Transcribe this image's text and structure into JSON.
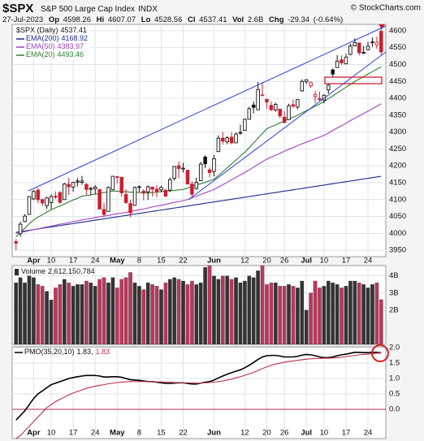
{
  "header": {
    "symbol": "$SPX",
    "name": "S&P 500 Large Cap Index",
    "exchange": "INDX",
    "copyright": "© StockCharts.com",
    "date": "27-Jul-2023",
    "labels": {
      "op": "Op",
      "hi": "Hi",
      "lo": "Lo",
      "cl": "Cl",
      "vol": "Vol",
      "chg": "Chg"
    },
    "vol": "2.6B",
    "chg": -29.34,
    "chg_pct": {
      "value": -0.64,
      "label": "(-0.64%)"
    }
  },
  "chart_data": [
    {
      "type": "candlestick",
      "name": "$SPX (Daily)",
      "up_color": "#111111",
      "down_color": "#cc1f2f",
      "grid": true,
      "categories": [
        null,
        null,
        null,
        null,
        "Apr",
        null,
        null,
        null,
        "10",
        null,
        null,
        null,
        null,
        "17",
        null,
        null,
        null,
        null,
        "24",
        null,
        null,
        null,
        null,
        "May",
        null,
        null,
        null,
        null,
        "8",
        null,
        null,
        null,
        null,
        "15",
        null,
        null,
        null,
        null,
        "22",
        null,
        null,
        null,
        null,
        null,
        null,
        "Jun",
        null,
        null,
        null,
        null,
        null,
        null,
        "12",
        null,
        null,
        null,
        null,
        "20",
        null,
        null,
        null,
        "26",
        null,
        null,
        null,
        null,
        "Jul",
        null,
        null,
        null,
        "10",
        null,
        null,
        null,
        null,
        "17",
        null,
        null,
        null,
        null,
        "24",
        null,
        null,
        null
      ],
      "open": [
        3975,
        3999,
        4035,
        4056,
        4102,
        4128,
        4100,
        4082,
        4091,
        4110,
        4121,
        4100,
        4145,
        4137,
        4152,
        4151,
        4145,
        4132,
        4132,
        4130,
        4071,
        4065,
        4129,
        4166,
        4166,
        4115,
        4088,
        4083,
        4136,
        4125,
        4123,
        4137,
        4131,
        4129,
        4128,
        4128,
        4163,
        4200,
        4191,
        4187,
        4146,
        4133,
        4156,
        4226,
        4188,
        4183,
        4242,
        4282,
        4271,
        4285,
        4268,
        4298,
        4305,
        4338,
        4380,
        4366,
        4408,
        4397,
        4379,
        4365,
        4368,
        4344,
        4337,
        4381,
        4374,
        4422,
        4449,
        4437,
        4405,
        4399,
        4395,
        4425,
        4484,
        4491,
        4514,
        4502,
        4530,
        4555,
        4564,
        4535,
        4544,
        4566,
        4558,
        4598.26
      ],
      "high": [
        3983,
        4035,
        4057,
        4110,
        4128,
        4134,
        4103,
        4108,
        4115,
        4124,
        4125,
        4149,
        4164,
        4152,
        4164,
        4170,
        4149,
        4138,
        4143,
        4130,
        4090,
        4139,
        4170,
        4170,
        4166,
        4131,
        4099,
        4139,
        4142,
        4131,
        4142,
        4138,
        4143,
        4141,
        4131,
        4165,
        4199,
        4213,
        4209,
        4188,
        4154,
        4165,
        4212,
        4231,
        4195,
        4232,
        4290,
        4300,
        4288,
        4299,
        4299,
        4322,
        4340,
        4375,
        4391,
        4448,
        4448,
        4397,
        4390,
        4387,
        4368,
        4362,
        4384,
        4396,
        4398,
        4456,
        4456,
        4450,
        4422,
        4420,
        4412,
        4443,
        4488,
        4528,
        4527,
        4532,
        4562,
        4578,
        4564,
        4555,
        4567,
        4580,
        4582,
        4607.07
      ],
      "low": [
        3950,
        3990,
        4033,
        4056,
        4099,
        4090,
        4081,
        4072,
        4072,
        4102,
        4087,
        4099,
        4114,
        4123,
        4139,
        4144,
        4114,
        4113,
        4117,
        4072,
        4049,
        4065,
        4128,
        4148,
        4109,
        4088,
        4048,
        4081,
        4123,
        4098,
        4099,
        4109,
        4107,
        4122,
        4110,
        4123,
        4156,
        4164,
        4180,
        4145,
        4104,
        4129,
        4156,
        4193,
        4166,
        4169,
        4241,
        4262,
        4264,
        4264,
        4268,
        4292,
        4304,
        4337,
        4355,
        4365,
        4407,
        4369,
        4363,
        4360,
        4341,
        4328,
        4336,
        4371,
        4367,
        4420,
        4442,
        4431,
        4385,
        4391,
        4385,
        4414,
        4464,
        4491,
        4499,
        4501,
        4527,
        4555,
        4527,
        4531,
        4542,
        4553,
        4547,
        4528.56
      ],
      "close": [
        3971,
        4027,
        4051,
        4109,
        4124,
        4100,
        4090,
        4105,
        4109,
        4108,
        4092,
        4146,
        4138,
        4151,
        4155,
        4155,
        4130,
        4133,
        4137,
        4072,
        4056,
        4136,
        4169,
        4168,
        4120,
        4091,
        4061,
        4136,
        4138,
        4119,
        4138,
        4131,
        4124,
        4136,
        4110,
        4159,
        4198,
        4192,
        4193,
        4146,
        4116,
        4151,
        4205,
        4206,
        4180,
        4221,
        4282,
        4273,
        4283,
        4268,
        4294,
        4299,
        4338,
        4369,
        4373,
        4426,
        4410,
        4389,
        4366,
        4382,
        4348,
        4328,
        4378,
        4377,
        4396,
        4450,
        4455,
        4446,
        4411,
        4399,
        4409,
        4439,
        4472,
        4510,
        4505,
        4522,
        4555,
        4565,
        4535,
        4536,
        4554,
        4567,
        4566,
        4537.41
      ],
      "series": [
        {
          "name": "EMA(200)",
          "color": "#1c2a8c",
          "values": [
            4003,
            4005,
            4007,
            4009,
            4011,
            4013,
            4015,
            4017,
            4019,
            4021,
            4023,
            4025,
            4027,
            4029,
            4031,
            4033,
            4035,
            4037,
            4039,
            4041,
            4043,
            4045,
            4047,
            4049,
            4051,
            4053,
            4055,
            4057,
            4059,
            4061,
            4063,
            4065,
            4067,
            4069,
            4071,
            4073,
            4075,
            4077,
            4079,
            4081,
            4083,
            4085,
            4087,
            4089,
            4091,
            4093,
            4095,
            4097,
            4099,
            4101,
            4103,
            4105,
            4107,
            4109,
            4111,
            4113,
            4115,
            4117,
            4119,
            4121,
            4123,
            4125,
            4127,
            4129,
            4131,
            4133,
            4135,
            4137,
            4139,
            4141,
            4143,
            4145,
            4147,
            4149,
            4151,
            4153,
            4155,
            4157,
            4159,
            4161,
            4163,
            4165,
            4167,
            4168.92
          ]
        },
        {
          "name": "EMA(50)",
          "color": "#a040c0",
          "values": [
            4000,
            4003,
            4005,
            4008,
            4011,
            4013,
            4016,
            4019,
            4021,
            4024,
            4027,
            4029,
            4032,
            4035,
            4037,
            4040,
            4042,
            4044,
            4047,
            4049,
            4051,
            4053,
            4056,
            4058,
            4060,
            4062,
            4065,
            4067,
            4070,
            4072,
            4075,
            4078,
            4081,
            4083,
            4086,
            4089,
            4092,
            4094,
            4097,
            4100,
            4105,
            4110,
            4115,
            4120,
            4125,
            4130,
            4137,
            4144,
            4151,
            4159,
            4166,
            4173,
            4180,
            4188,
            4196,
            4204,
            4212,
            4220,
            4226,
            4231,
            4237,
            4243,
            4249,
            4254,
            4260,
            4265,
            4270,
            4275,
            4280,
            4285,
            4290,
            4297,
            4305,
            4312,
            4319,
            4326,
            4334,
            4341,
            4348,
            4355,
            4362,
            4369,
            4376,
            4383.97
          ]
        },
        {
          "name": "EMA(20)",
          "color": "#2e7d32",
          "values": [
            3990,
            4003,
            4015,
            4028,
            4040,
            4048,
            4055,
            4063,
            4070,
            4076,
            4081,
            4087,
            4093,
            4099,
            4104,
            4110,
            4112,
            4114,
            4116,
            4118,
            4121,
            4123,
            4125,
            4125,
            4124,
            4123,
            4122,
            4122,
            4121,
            4120,
            4120,
            4121,
            4122,
            4124,
            4125,
            4126,
            4127,
            4129,
            4130,
            4134,
            4139,
            4143,
            4147,
            4151,
            4156,
            4160,
            4171,
            4183,
            4194,
            4206,
            4217,
            4229,
            4240,
            4254,
            4268,
            4282,
            4296,
            4310,
            4316,
            4321,
            4327,
            4333,
            4339,
            4344,
            4350,
            4357,
            4363,
            4370,
            4377,
            4383,
            4390,
            4399,
            4407,
            4416,
            4424,
            4433,
            4441,
            4450,
            4457,
            4464,
            4472,
            4479,
            4486,
            4493.46
          ]
        }
      ],
      "ylim": [
        3931,
        4619
      ],
      "yticks": [
        3950,
        4000,
        4050,
        4100,
        4150,
        4200,
        4250,
        4300,
        4350,
        4400,
        4450,
        4500,
        4550,
        4600
      ]
    },
    {
      "type": "bar",
      "name": "Volume",
      "up_color": "#333333",
      "down_color": "#b8385a",
      "grid": true,
      "legend_value": {
        "value": 2612150784,
        "label": "2,612,150,784"
      },
      "values": [
        3600000000.0,
        3900000000.0,
        3600000000.0,
        4000000000.0,
        3900000000.0,
        3500000000.0,
        3400000000.0,
        3100000000.0,
        2600000000.0,
        3300000000.0,
        3500000000.0,
        3800000000.0,
        3600000000.0,
        3400000000.0,
        3500000000.0,
        3500000000.0,
        3700000000.0,
        3600000000.0,
        3400000000.0,
        3800000000.0,
        3900000000.0,
        3600000000.0,
        3900000000.0,
        3300000000.0,
        3800000000.0,
        3900000000.0,
        4200000000.0,
        3600000000.0,
        3400000000.0,
        3200000000.0,
        3600000000.0,
        3500000000.0,
        3400000000.0,
        3200000000.0,
        3600000000.0,
        3800000000.0,
        3900000000.0,
        3800000000.0,
        3700000000.0,
        3500000000.0,
        3700000000.0,
        3500000000.0,
        3600000000.0,
        4500000000.0,
        4600000000.0,
        4000000000.0,
        3800000000.0,
        4000000000.0,
        4000000000.0,
        3800000000.0,
        3900000000.0,
        3600000000.0,
        3700000000.0,
        4000000000.0,
        3900000000.0,
        4300000000.0,
        4600000000.0,
        3500000000.0,
        3600000000.0,
        3600000000.0,
        3400000000.0,
        3400000000.0,
        3500000000.0,
        3400000000.0,
        3300000000.0,
        3700000000.0,
        2000000000.0,
        3000000000.0,
        3700000000.0,
        3300000000.0,
        3400000000.0,
        3700000000.0,
        3600000000.0,
        3500000000.0,
        3300000000.0,
        3400000000.0,
        3700000000.0,
        3700000000.0,
        3600000000.0,
        3500000000.0,
        3300000000.0,
        3500000000.0,
        3600000000.0,
        2612150784
      ],
      "ylim": [
        0,
        4600000000.0
      ],
      "yticks": [
        {
          "value": 2000000000.0,
          "label": "2B"
        },
        {
          "value": 3000000000.0,
          "label": "3B"
        },
        {
          "value": 4000000000.0,
          "label": "4B"
        }
      ]
    },
    {
      "type": "line",
      "grid": true,
      "zero_line": true,
      "zero_color": "#b03050",
      "categories": [
        null,
        null,
        null,
        null,
        "Apr",
        null,
        null,
        null,
        "10",
        null,
        null,
        null,
        null,
        "17",
        null,
        null,
        null,
        null,
        "24",
        null,
        null,
        null,
        null,
        "May",
        null,
        null,
        null,
        null,
        "8",
        null,
        null,
        null,
        null,
        "15",
        null,
        null,
        null,
        null,
        "22",
        null,
        null,
        null,
        null,
        null,
        null,
        "Jun",
        null,
        null,
        null,
        null,
        null,
        null,
        "12",
        null,
        null,
        null,
        null,
        "20",
        null,
        null,
        null,
        "26",
        null,
        null,
        null,
        null,
        "Jul",
        null,
        null,
        null,
        "10",
        null,
        null,
        null,
        null,
        "17",
        null,
        null,
        null,
        null,
        "24",
        null,
        null,
        null
      ],
      "series": [
        {
          "name": "PMO(35,20,10)",
          "color": "#000000",
          "values": [
            -0.35,
            -0.2,
            -0.05,
            0.15,
            0.35,
            0.5,
            0.6,
            0.7,
            0.8,
            0.85,
            0.9,
            0.95,
            1.0,
            1.03,
            1.06,
            1.08,
            1.1,
            1.1,
            1.1,
            1.08,
            1.05,
            1.05,
            1.06,
            1.06,
            1.04,
            1.0,
            0.96,
            0.95,
            0.94,
            0.92,
            0.9,
            0.9,
            0.88,
            0.86,
            0.84,
            0.84,
            0.85,
            0.86,
            0.86,
            0.84,
            0.82,
            0.82,
            0.85,
            0.88,
            0.9,
            0.95,
            1.02,
            1.08,
            1.14,
            1.19,
            1.24,
            1.28,
            1.35,
            1.43,
            1.52,
            1.62,
            1.7,
            1.74,
            1.75,
            1.75,
            1.73,
            1.7,
            1.7,
            1.7,
            1.72,
            1.76,
            1.78,
            1.77,
            1.74,
            1.7,
            1.68,
            1.68,
            1.7,
            1.74,
            1.77,
            1.79,
            1.82,
            1.85,
            1.85,
            1.84,
            1.84,
            1.85,
            1.85,
            1.83
          ]
        },
        {
          "color": "#c0304a",
          "values": [
            -0.95,
            -0.85,
            -0.7,
            -0.55,
            -0.4,
            -0.25,
            -0.1,
            0.05,
            0.15,
            0.25,
            0.33,
            0.4,
            0.47,
            0.53,
            0.58,
            0.63,
            0.68,
            0.72,
            0.75,
            0.78,
            0.8,
            0.83,
            0.85,
            0.87,
            0.88,
            0.89,
            0.9,
            0.9,
            0.9,
            0.9,
            0.9,
            0.9,
            0.89,
            0.89,
            0.88,
            0.88,
            0.87,
            0.87,
            0.86,
            0.86,
            0.86,
            0.85,
            0.85,
            0.86,
            0.87,
            0.88,
            0.9,
            0.92,
            0.95,
            0.98,
            1.02,
            1.06,
            1.1,
            1.15,
            1.2,
            1.26,
            1.32,
            1.38,
            1.43,
            1.47,
            1.5,
            1.53,
            1.55,
            1.57,
            1.59,
            1.61,
            1.63,
            1.64,
            1.65,
            1.65,
            1.66,
            1.66,
            1.67,
            1.68,
            1.69,
            1.71,
            1.73,
            1.75,
            1.77,
            1.78,
            1.79,
            1.81,
            1.82,
            1.83
          ]
        }
      ],
      "ylim": [
        -0.95,
        2.03
      ],
      "yticks": [
        {
          "value": 2,
          "label": "2.0"
        },
        {
          "value": 1.5,
          "label": "1.5"
        },
        {
          "value": 1,
          "label": "1.0"
        },
        {
          "value": 0.5,
          "label": "0.5"
        },
        {
          "value": 0,
          "label": "0.0"
        }
      ]
    }
  ]
}
